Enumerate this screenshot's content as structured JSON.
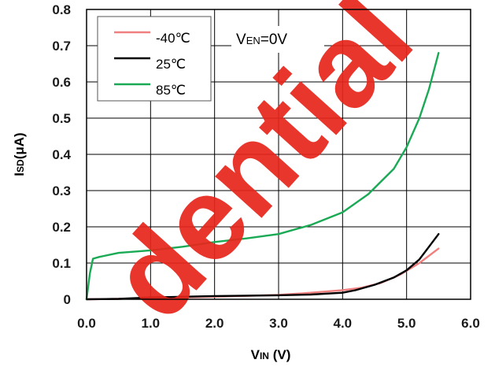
{
  "chart_data": {
    "type": "line",
    "xlabel_main": "V",
    "xlabel_sub": "IN",
    "xlabel_unit": " (V)",
    "ylabel_main": "I",
    "ylabel_sub": "SD",
    "ylabel_unit": "(μA)",
    "xlim": [
      0,
      6
    ],
    "ylim": [
      0,
      0.8
    ],
    "x_ticks": [
      "0.0",
      "1.0",
      "2.0",
      "3.0",
      "4.0",
      "5.0",
      "6.0"
    ],
    "y_ticks": [
      "0",
      "0.1",
      "0.2",
      "0.3",
      "0.4",
      "0.5",
      "0.6",
      "0.7",
      "0.8"
    ],
    "grid": true,
    "legend_position": "top-left",
    "annotation": {
      "main": "V",
      "sub": "EN",
      "rest": "=0V"
    },
    "watermark": "dential",
    "series": [
      {
        "name": "-40℃",
        "color": "#f08080",
        "x": [
          0.0,
          0.5,
          1.0,
          2.0,
          3.0,
          3.5,
          4.0,
          4.3,
          4.6,
          4.9,
          5.2,
          5.5
        ],
        "y": [
          0.0,
          0.001,
          0.003,
          0.007,
          0.012,
          0.018,
          0.025,
          0.032,
          0.045,
          0.068,
          0.1,
          0.14
        ]
      },
      {
        "name": "25℃",
        "color": "#000000",
        "x": [
          0.0,
          0.5,
          1.0,
          2.0,
          3.0,
          3.5,
          4.0,
          4.2,
          4.5,
          4.8,
          5.0,
          5.2,
          5.35,
          5.5
        ],
        "y": [
          0.0,
          0.001,
          0.005,
          0.009,
          0.011,
          0.013,
          0.018,
          0.025,
          0.04,
          0.06,
          0.08,
          0.11,
          0.145,
          0.18
        ]
      },
      {
        "name": "85℃",
        "color": "#1aaa55",
        "x": [
          0.0,
          0.05,
          0.1,
          0.2,
          0.5,
          1.0,
          1.5,
          2.0,
          2.5,
          3.0,
          3.5,
          4.0,
          4.4,
          4.8,
          5.0,
          5.2,
          5.35,
          5.5
        ],
        "y": [
          0.0,
          0.07,
          0.112,
          0.117,
          0.128,
          0.135,
          0.145,
          0.158,
          0.168,
          0.18,
          0.205,
          0.24,
          0.29,
          0.36,
          0.42,
          0.5,
          0.58,
          0.68
        ]
      }
    ]
  }
}
